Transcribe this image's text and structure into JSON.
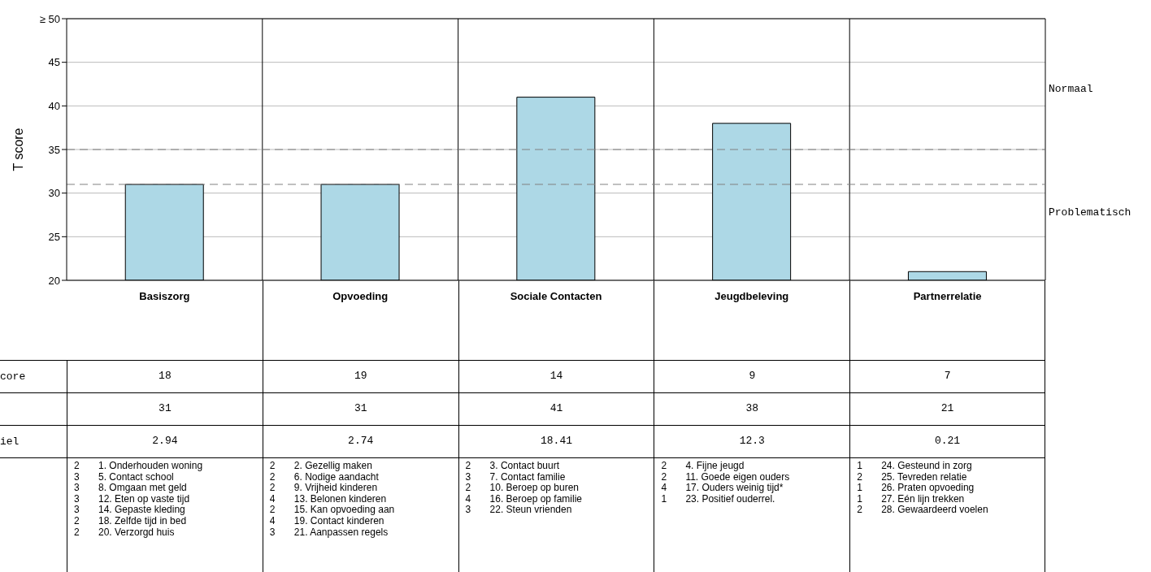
{
  "chart_data": {
    "type": "bar",
    "ylabel": "T score",
    "categories": [
      "Basiszorg",
      "Opvoeding",
      "Sociale Contacten",
      "Jeugdbeleving",
      "Partnerrelatie"
    ],
    "values": [
      31,
      31,
      41,
      38,
      21
    ],
    "color": "#add8e6",
    "ylim": [
      20,
      50
    ],
    "yticks": [
      20,
      25,
      30,
      35,
      40,
      45,
      {
        "value": 50,
        "label": "≥ 50"
      }
    ],
    "grid": "y",
    "legend": false,
    "data_labels": true,
    "ref_lines": [
      {
        "axis": "y",
        "value": 35,
        "color": "#808080",
        "line_style": "dashed"
      },
      {
        "axis": "y",
        "value": 31,
        "color": "#808080",
        "line_style": "dashed"
      }
    ],
    "annotations": [
      "Normaal",
      "Problematisch",
      "core",
      "iel",
      "18",
      "19",
      "14",
      "9",
      "7",
      "2.94",
      "2.74",
      "18.41",
      "12.3",
      "0.21",
      "2\t1. Onderhouden woning\n3\t5. Contact school\n3\t8. Omgaan met geld\n3\t12. Eten op vaste tijd\n3\t14. Gepaste kleding\n2\t18. Zelfde tijd in bed\n2\t20. Verzorgd huis",
      "2\t2. Gezellig maken\n2\t6. Nodige aandacht\n2\t9. Vrijheid kinderen\n4\t13. Belonen kinderen\n2\t15. Kan opvoeding aan\n4\t19. Contact kinderen\n3\t21. Aanpassen regels",
      "2\t3. Contact buurt\n3\t7. Contact familie\n2\t10. Beroep op buren\n4\t16. Beroep op familie\n3\t22. Steun vrienden",
      "2\t4. Fijne jeugd\n2\t11. Goede eigen ouders\n4\t17. Ouders weinig tijd*\n1\t23. Positief ouderrel.",
      "1\t24. Gesteund in zorg\n2\t25. Tevreden relatie\n1\t26. Praten opvoeding\n1\t27. Eén lijn trekken\n2\t28. Gewaardeerd voelen"
    ]
  }
}
